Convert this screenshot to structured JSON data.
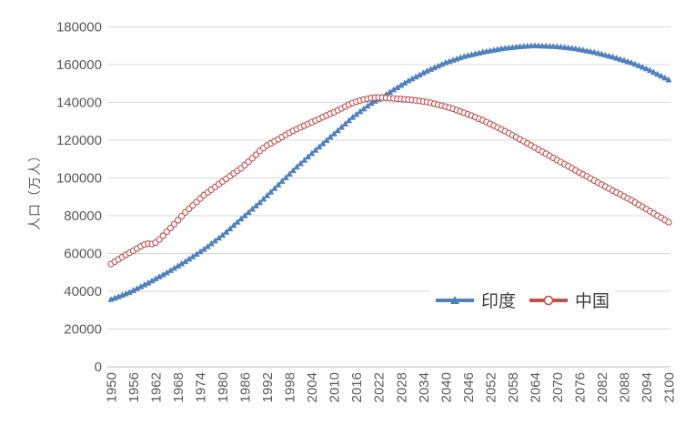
{
  "chart_data": {
    "type": "line",
    "title": "",
    "xlabel": "",
    "ylabel": "人口（万人）",
    "x": {
      "start": 1950,
      "end": 2100,
      "step": 1
    },
    "x_ticks": [
      1950,
      1956,
      1962,
      1968,
      1974,
      1980,
      1986,
      1992,
      1998,
      2004,
      2010,
      2016,
      2022,
      2028,
      2034,
      2040,
      2046,
      2052,
      2058,
      2064,
      2070,
      2076,
      2082,
      2088,
      2094,
      2100
    ],
    "y_ticks": [
      0,
      20000,
      40000,
      60000,
      80000,
      100000,
      120000,
      140000,
      160000,
      180000
    ],
    "ylim": [
      0,
      180000
    ],
    "grid": true,
    "legend_position": "inside-bottom-right",
    "series": [
      {
        "name": "印度",
        "color": "#4F81BD",
        "marker": "triangle",
        "values": [
          35700,
          36460,
          37220,
          37980,
          38740,
          39500,
          40500,
          41500,
          42500,
          43500,
          44500,
          45580,
          46660,
          47740,
          48820,
          49900,
          51080,
          52260,
          53440,
          54620,
          55800,
          57100,
          58400,
          59700,
          61000,
          62300,
          63780,
          65260,
          66740,
          68220,
          69700,
          71440,
          73180,
          74920,
          76660,
          78400,
          80120,
          81840,
          83560,
          85280,
          87000,
          88880,
          90760,
          92640,
          94520,
          96400,
          98300,
          100200,
          102100,
          104000,
          105900,
          107680,
          109460,
          111240,
          113020,
          114800,
          116520,
          118240,
          119960,
          121680,
          123400,
          125160,
          126920,
          128680,
          130440,
          132200,
          133680,
          135160,
          136640,
          138120,
          139600,
          140700,
          141800,
          142900,
          144200,
          145500,
          146700,
          147900,
          149100,
          150300,
          151500,
          152540,
          153580,
          154620,
          155660,
          156700,
          157580,
          158460,
          159340,
          160220,
          161100,
          161760,
          162420,
          163080,
          163740,
          164400,
          164860,
          165320,
          165780,
          166240,
          166700,
          167060,
          167420,
          167780,
          168140,
          168500,
          168720,
          168940,
          169160,
          169380,
          169600,
          169750,
          169880,
          170000,
          170100,
          170000,
          169920,
          169840,
          169760,
          169680,
          169600,
          169380,
          169160,
          168940,
          168720,
          168500,
          168120,
          167740,
          167360,
          166980,
          166600,
          166100,
          165600,
          165100,
          164600,
          164100,
          163500,
          162900,
          162300,
          161700,
          161100,
          160300,
          159500,
          158700,
          157900,
          157000,
          156000,
          155000,
          154000,
          153000,
          152000
        ]
      },
      {
        "name": "中国",
        "color": "#C0504D",
        "marker": "open-circle",
        "values": [
          54400,
          55700,
          56900,
          58100,
          59300,
          60400,
          61500,
          62600,
          63800,
          64700,
          65200,
          65000,
          65800,
          67400,
          69400,
          71500,
          73500,
          75500,
          77600,
          79700,
          81800,
          83620,
          85440,
          87260,
          89080,
          90900,
          92340,
          93780,
          95220,
          96660,
          98100,
          99500,
          101000,
          102400,
          103800,
          105100,
          106800,
          108600,
          110400,
          112300,
          114300,
          115800,
          117200,
          118300,
          119400,
          120500,
          121700,
          122800,
          123900,
          124900,
          125900,
          126800,
          127700,
          128600,
          129500,
          130400,
          131300,
          132200,
          133100,
          134000,
          134800,
          135800,
          136800,
          137800,
          138800,
          139700,
          140400,
          141000,
          141500,
          141900,
          142300,
          142500,
          142600,
          142500,
          142400,
          142200,
          142100,
          141900,
          141800,
          141600,
          141500,
          141300,
          141000,
          140800,
          140500,
          140200,
          139800,
          139300,
          138800,
          138300,
          137800,
          137200,
          136600,
          135900,
          135200,
          134500,
          133700,
          133000,
          132200,
          131300,
          130500,
          129600,
          128600,
          127700,
          126700,
          125700,
          124700,
          123700,
          122600,
          121600,
          120500,
          119400,
          118300,
          117200,
          116100,
          115000,
          113900,
          112800,
          111700,
          110600,
          109500,
          108400,
          107300,
          106200,
          105100,
          104000,
          102900,
          101800,
          100800,
          99700,
          98600,
          97500,
          96500,
          95400,
          94400,
          93300,
          92300,
          91300,
          90200,
          89200,
          88200,
          87000,
          85800,
          84700,
          83500,
          82300,
          81200,
          80000,
          78900,
          77700,
          76600
        ]
      }
    ]
  },
  "colors": {
    "background": "#FFFFFF",
    "axis_text": "#595959",
    "gridline": "#D9D9D9",
    "axis_line": "#BFBFBF",
    "legend_text": "#404040",
    "india_blue": "#4F81BD",
    "china_red": "#C0504D"
  }
}
